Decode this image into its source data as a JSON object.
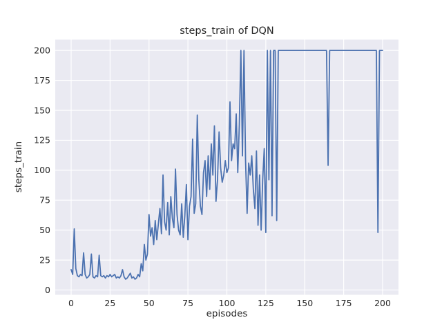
{
  "chart_data": {
    "type": "line",
    "title": "steps_train of DQN",
    "xlabel": "episodes",
    "ylabel": "steps_train",
    "xlim": [
      -10.2,
      210.2
    ],
    "ylim": [
      -4,
      209
    ],
    "xticks": [
      0,
      25,
      50,
      75,
      100,
      125,
      150,
      175,
      200
    ],
    "yticks": [
      0,
      25,
      50,
      75,
      100,
      125,
      150,
      175,
      200
    ],
    "grid": true,
    "legend": false,
    "style": {
      "figure_background": "#ffffff",
      "axes_background": "#eaeaf2",
      "grid_color": "#ffffff",
      "text_color": "#262626",
      "line_color": "#4c72b0"
    },
    "series": [
      {
        "name": "steps_train",
        "color": "#4c72b0",
        "x_start": 0,
        "x_step": 1,
        "values": [
          17,
          13,
          51,
          18,
          12,
          11,
          13,
          12,
          31,
          13,
          10,
          11,
          13,
          30,
          11,
          10,
          12,
          11,
          29,
          12,
          11,
          12,
          10,
          12,
          11,
          13,
          11,
          12,
          13,
          10,
          11,
          10,
          12,
          17,
          11,
          9,
          10,
          12,
          14,
          10,
          11,
          9,
          10,
          13,
          11,
          22,
          16,
          38,
          25,
          30,
          63,
          45,
          52,
          38,
          58,
          42,
          55,
          68,
          47,
          96,
          57,
          50,
          73,
          46,
          78,
          60,
          52,
          101,
          63,
          50,
          46,
          72,
          44,
          62,
          88,
          42,
          70,
          78,
          126,
          64,
          72,
          146,
          92,
          70,
          63,
          98,
          108,
          78,
          112,
          84,
          122,
          96,
          137,
          74,
          92,
          132,
          102,
          90,
          96,
          108,
          98,
          102,
          157,
          108,
          122,
          118,
          147,
          98,
          138,
          200,
          112,
          200,
          108,
          64,
          106,
          96,
          112,
          84,
          68,
          116,
          54,
          96,
          50,
          92,
          118,
          48,
          200,
          92,
          200,
          62,
          200,
          200,
          58,
          200,
          200,
          200,
          200,
          200,
          200,
          200,
          200,
          200,
          200,
          200,
          200,
          200,
          200,
          200,
          200,
          200,
          200,
          200,
          200,
          200,
          200,
          200,
          200,
          200,
          200,
          200,
          200,
          200,
          200,
          200,
          200,
          104,
          200,
          200,
          200,
          200,
          200,
          200,
          200,
          200,
          200,
          200,
          200,
          200,
          200,
          200,
          200,
          200,
          200,
          200,
          200,
          200,
          200,
          200,
          200,
          200,
          200,
          200,
          200,
          200,
          200,
          200,
          200,
          48,
          200,
          200,
          200
        ]
      }
    ]
  }
}
